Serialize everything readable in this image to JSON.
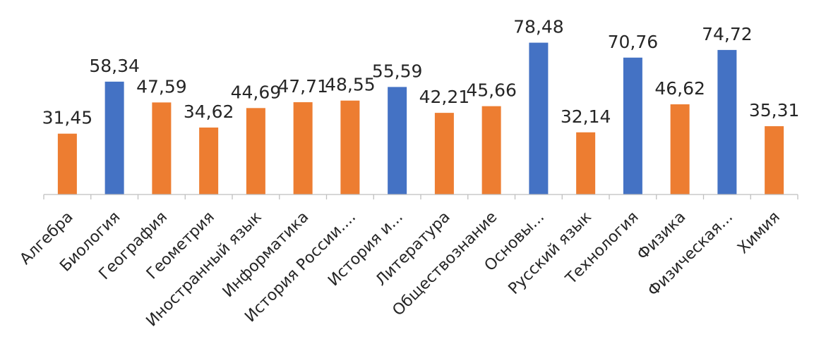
{
  "chart_data": {
    "type": "bar",
    "title": "",
    "xlabel": "",
    "ylabel": "",
    "ylim": [
      0,
      80
    ],
    "grid": false,
    "legend": "none",
    "decimal_separator": ",",
    "colors": {
      "low": "#ED7D31",
      "high": "#4472C4",
      "axis": "#BFBFBF",
      "text": "#262626"
    },
    "categories": [
      "Алгебра",
      "Биология",
      "География",
      "Геометрия",
      "Иностранный язык",
      "Информатика",
      "История России....",
      "История и...",
      "Литература",
      "Обществознание",
      "Основы...",
      "Русский язык",
      "Технология",
      "Физика",
      "Физическая...",
      "Химия"
    ],
    "values": [
      31.45,
      58.34,
      47.59,
      34.62,
      44.69,
      47.71,
      48.55,
      55.59,
      42.21,
      45.66,
      78.48,
      32.14,
      70.76,
      46.62,
      74.72,
      35.31
    ],
    "labels": [
      "31,45",
      "58,34",
      "47,59",
      "34,62",
      "44,69",
      "47,71",
      "48,55",
      "55,59",
      "42,21",
      "45,66",
      "78,48",
      "32,14",
      "70,76",
      "46,62",
      "74,72",
      "35,31"
    ],
    "bar_colors": [
      "low",
      "high",
      "low",
      "low",
      "low",
      "low",
      "low",
      "high",
      "low",
      "low",
      "high",
      "low",
      "high",
      "low",
      "high",
      "low"
    ]
  }
}
